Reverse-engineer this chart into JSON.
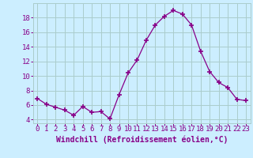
{
  "x": [
    0,
    1,
    2,
    3,
    4,
    5,
    6,
    7,
    8,
    9,
    10,
    11,
    12,
    13,
    14,
    15,
    16,
    17,
    18,
    19,
    20,
    21,
    22,
    23
  ],
  "y": [
    6.9,
    6.1,
    5.7,
    5.3,
    4.6,
    5.8,
    5.0,
    5.1,
    4.1,
    7.4,
    10.4,
    12.2,
    14.9,
    17.0,
    18.2,
    19.0,
    18.5,
    17.0,
    13.4,
    10.6,
    9.1,
    8.4,
    6.8,
    6.6
  ],
  "line_color": "#880088",
  "marker": "+",
  "marker_size": 4,
  "bg_color": "#cceeff",
  "grid_color": "#aacccc",
  "xlabel": "Windchill (Refroidissement éolien,°C)",
  "xlabel_fontsize": 7,
  "ylabel_ticks": [
    4,
    6,
    8,
    10,
    12,
    14,
    16,
    18
  ],
  "xlim": [
    -0.5,
    23.5
  ],
  "ylim": [
    3.5,
    20.0
  ],
  "tick_fontsize": 6.5,
  "title": ""
}
